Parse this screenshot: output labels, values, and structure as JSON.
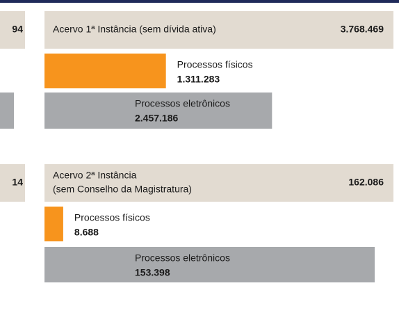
{
  "sections": [
    {
      "cut_total": "94",
      "title": [
        "Acervo 1ª Instância (sem dívida ativa)"
      ],
      "total": {
        "value": 3768469,
        "label": "3.768.469"
      },
      "parts": [
        {
          "name": "Processos físicos",
          "value": {
            "value": 1311283,
            "label": "1.311.283"
          },
          "color": "#f7941d"
        },
        {
          "name": "Processos eletrônicos",
          "value": {
            "value": 2457186,
            "label": "2.457.186"
          },
          "color": "#a7a9ac"
        }
      ]
    },
    {
      "cut_total": "14",
      "title": [
        "Acervo 2ª Instância",
        "(sem Conselho da Magistratura)"
      ],
      "total": {
        "value": 162086,
        "label": "162.086"
      },
      "parts": [
        {
          "name": "Processos físicos",
          "value": {
            "value": 8688,
            "label": "8.688"
          },
          "color": "#f7941d"
        },
        {
          "name": "Processos eletrônicos",
          "value": {
            "value": 153398,
            "label": "153.398"
          },
          "color": "#a7a9ac"
        }
      ]
    }
  ]
}
